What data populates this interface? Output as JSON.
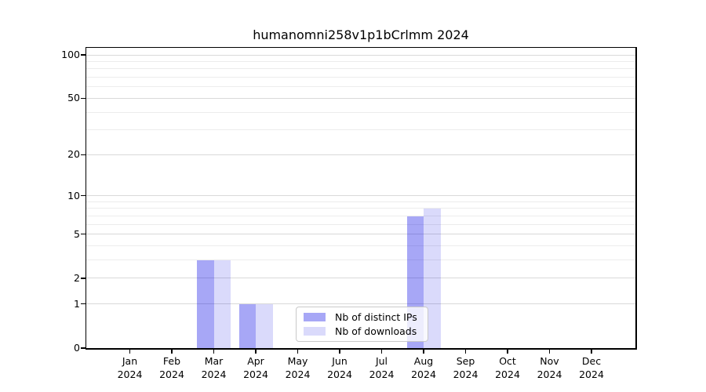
{
  "figure": {
    "title": "humanomni258v1p1bCrlmm 2024",
    "background_color": "#ffffff"
  },
  "chart_data": {
    "type": "bar",
    "title": "humanomni258v1p1bCrlmm 2024",
    "xlabel": "",
    "ylabel": "",
    "categories": [
      "Jan 2024",
      "Feb 2024",
      "Mar 2024",
      "Apr 2024",
      "May 2024",
      "Jun 2024",
      "Jul 2024",
      "Aug 2024",
      "Sep 2024",
      "Oct 2024",
      "Nov 2024",
      "Dec 2024"
    ],
    "series": [
      {
        "name": "Nb of distinct IPs",
        "color": "rgba(0,0,230,0.345)",
        "values": [
          0,
          0,
          3,
          1,
          0,
          0,
          0,
          7,
          0,
          0,
          0,
          0
        ]
      },
      {
        "name": "Nb of downloads",
        "color": "rgba(0,0,230,0.145)",
        "values": [
          0,
          0,
          3,
          1,
          0,
          0,
          0,
          8,
          0,
          0,
          0,
          0
        ]
      }
    ],
    "yscale": "log1p",
    "ylim": [
      0,
      112
    ],
    "y_major_ticks": [
      0,
      1,
      2,
      5,
      10,
      20,
      50,
      100
    ],
    "y_minor_gridlines": [
      3,
      4,
      6,
      7,
      8,
      9,
      30,
      40,
      60,
      70,
      80,
      90
    ],
    "grid": true,
    "legend": {
      "position": "lower-center-inside",
      "items": [
        "Nb of distinct IPs",
        "Nb of downloads"
      ]
    }
  },
  "colors": {
    "grid_major": "#d9d9d9",
    "grid_minor": "#ececec",
    "spine": "#000000",
    "legend_border": "#c9c9c9",
    "legend_background": "rgba(255,255,255,0.8)"
  }
}
